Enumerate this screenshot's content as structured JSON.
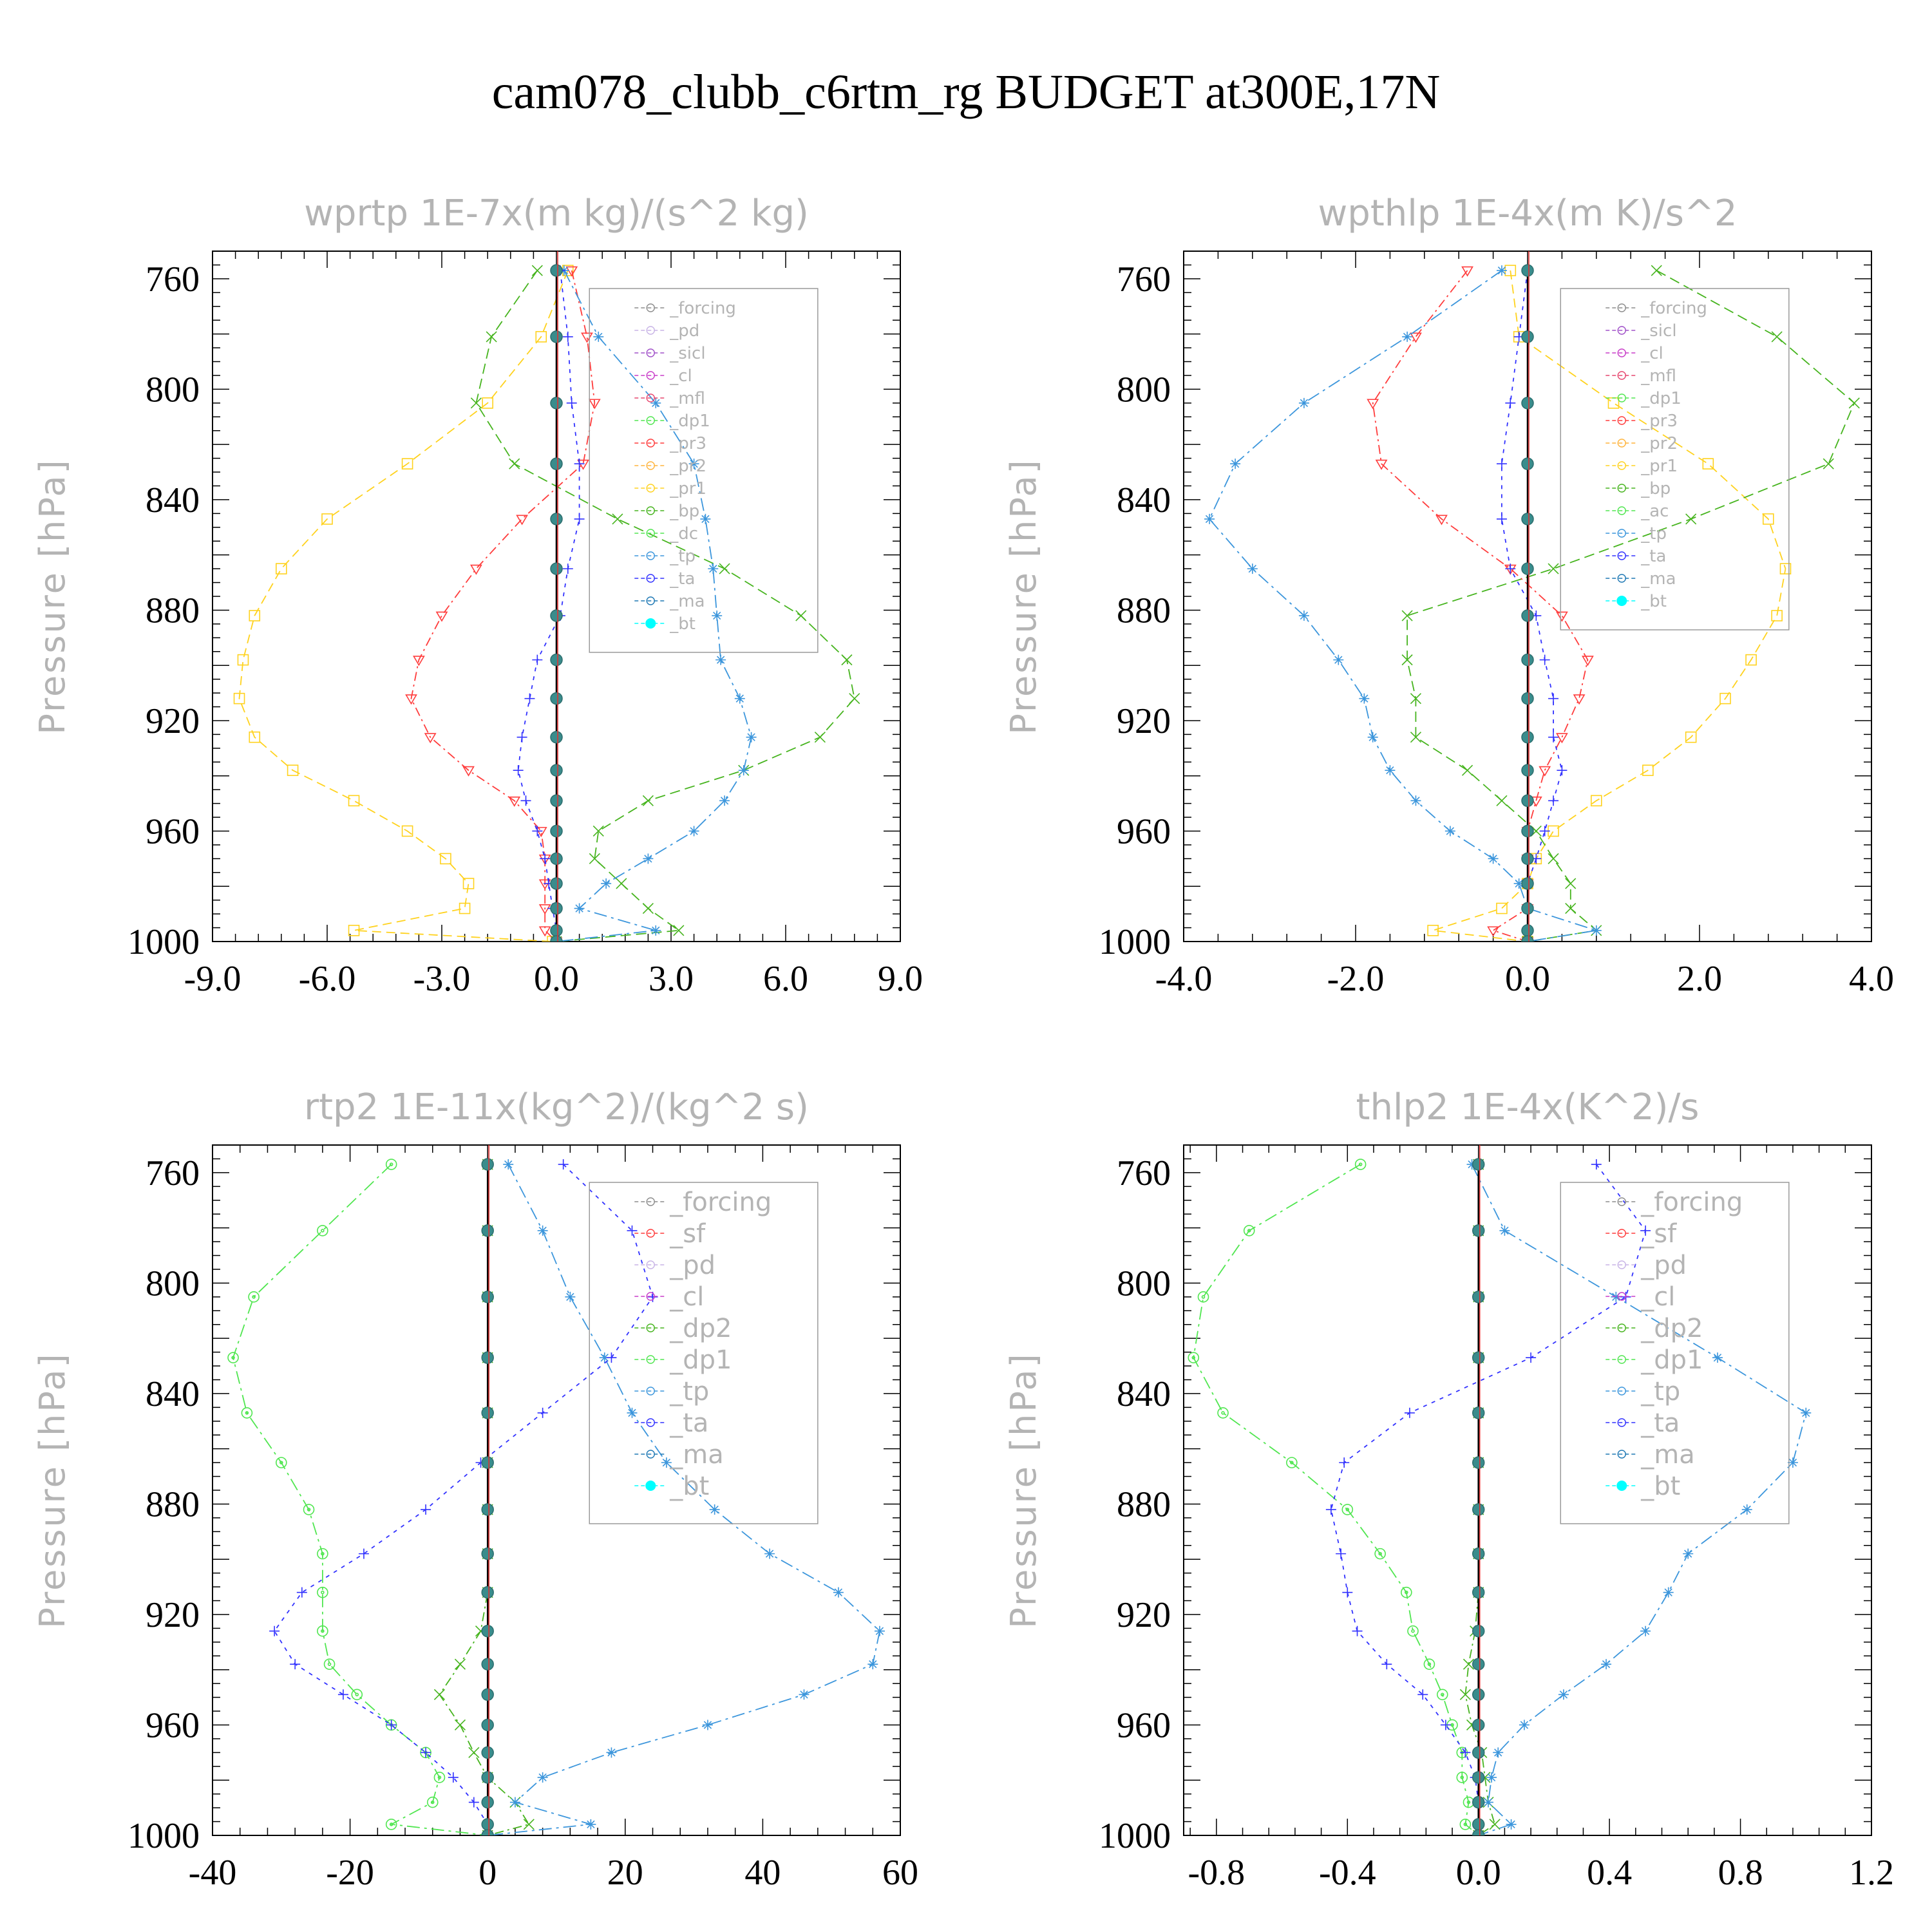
{
  "title": "cam078_clubb_c6rtm_rg  BUDGET at300E,17N",
  "chart_data": [
    {
      "type": "line",
      "title": "wprtp  1E-7x(m kg)/(s^2 kg)",
      "ylabel": "Pressure [hPa]",
      "xlim": [
        -9,
        9
      ],
      "ylim": [
        1000,
        750
      ],
      "xticks": [
        "-9.0",
        "-6.0",
        "-3.0",
        "0.0",
        "3.0",
        "6.0",
        "9.0"
      ],
      "yticks": [
        "760",
        "800",
        "840",
        "880",
        "920",
        "960",
        "1000"
      ],
      "pressure": [
        757,
        781,
        805,
        827,
        847,
        865,
        882,
        898,
        912,
        926,
        938,
        949,
        960,
        970,
        979,
        988,
        996,
        1000
      ],
      "legend": [
        "_forcing",
        "_pd",
        "_sicl",
        "_cl",
        "_mfl",
        "_dp1",
        "_pr3",
        "_pr2",
        "_pr1",
        "_bp",
        "_dc",
        "_tp",
        "_ta",
        "_ma",
        "_bt"
      ],
      "series": [
        {
          "name": "_pr1",
          "color": "#ffd21e",
          "values": [
            0.3,
            -0.4,
            -1.8,
            -3.9,
            -6.0,
            -7.2,
            -7.9,
            -8.2,
            -8.3,
            -7.9,
            -6.9,
            -5.3,
            -3.9,
            -2.9,
            -2.3,
            -2.4,
            -5.3,
            -0.1
          ]
        },
        {
          "name": "_pr3",
          "color": "#ff3c3c",
          "values": [
            0.4,
            0.8,
            1.0,
            0.7,
            -0.9,
            -2.1,
            -3.0,
            -3.6,
            -3.8,
            -3.3,
            -2.3,
            -1.1,
            -0.4,
            -0.3,
            -0.3,
            -0.3,
            -0.3,
            0
          ]
        },
        {
          "name": "_bp",
          "color": "#46b41e",
          "values": [
            -0.5,
            -1.7,
            -2.1,
            -1.1,
            1.6,
            4.4,
            6.4,
            7.6,
            7.8,
            6.9,
            4.9,
            2.4,
            1.1,
            1.0,
            1.7,
            2.4,
            3.2,
            0
          ]
        },
        {
          "name": "_tp",
          "color": "#3c96dc",
          "values": [
            0.2,
            1.1,
            2.6,
            3.6,
            3.9,
            4.1,
            4.2,
            4.3,
            4.8,
            5.1,
            4.9,
            4.4,
            3.6,
            2.4,
            1.3,
            0.6,
            2.6,
            0
          ]
        },
        {
          "name": "_ta",
          "color": "#3232ff",
          "values": [
            0.1,
            0.3,
            0.4,
            0.6,
            0.6,
            0.3,
            0.1,
            -0.5,
            -0.7,
            -0.9,
            -1.0,
            -0.8,
            -0.5,
            -0.3,
            -0.2,
            -0.1,
            0,
            0
          ]
        },
        {
          "name": "_bt",
          "color": "#00ffff",
          "values": [
            0,
            0,
            0,
            0,
            0,
            0,
            0,
            0,
            0,
            0,
            0,
            0,
            0,
            0,
            0,
            0,
            0,
            0
          ]
        }
      ]
    },
    {
      "type": "line",
      "title": "wpthlp  1E-4x(m K)/s^2",
      "ylabel": "Pressure [hPa]",
      "xlim": [
        -4,
        4
      ],
      "ylim": [
        1000,
        750
      ],
      "xticks": [
        "-4.0",
        "-2.0",
        "0.0",
        "2.0",
        "4.0"
      ],
      "yticks": [
        "760",
        "800",
        "840",
        "880",
        "920",
        "960",
        "1000"
      ],
      "pressure": [
        757,
        781,
        805,
        827,
        847,
        865,
        882,
        898,
        912,
        926,
        938,
        949,
        960,
        970,
        979,
        988,
        996,
        1000
      ],
      "legend": [
        "_forcing",
        "_sicl",
        "_cl",
        "_mfl",
        "_dp1",
        "_pr3",
        "_pr2",
        "_pr1",
        "_bp",
        "_ac",
        "_tp",
        "_ta",
        "_ma",
        "_bt"
      ],
      "series": [
        {
          "name": "_pr1",
          "color": "#ffd21e",
          "values": [
            -0.2,
            -0.1,
            1.0,
            2.1,
            2.8,
            3.0,
            2.9,
            2.6,
            2.3,
            1.9,
            1.4,
            0.8,
            0.3,
            0.1,
            0.0,
            -0.3,
            -1.1,
            0
          ]
        },
        {
          "name": "_pr3",
          "color": "#ff3c3c",
          "values": [
            -0.7,
            -1.3,
            -1.8,
            -1.7,
            -1.0,
            -0.2,
            0.4,
            0.7,
            0.6,
            0.4,
            0.2,
            0.1,
            0.0,
            0.0,
            0.0,
            0.0,
            -0.4,
            0
          ]
        },
        {
          "name": "_bp",
          "color": "#46b41e",
          "values": [
            1.5,
            2.9,
            3.8,
            3.5,
            1.9,
            0.3,
            -1.4,
            -1.4,
            -1.3,
            -1.3,
            -0.7,
            -0.3,
            0.1,
            0.3,
            0.5,
            0.5,
            0.8,
            0
          ]
        },
        {
          "name": "_tp",
          "color": "#3c96dc",
          "values": [
            -0.3,
            -1.4,
            -2.6,
            -3.4,
            -3.7,
            -3.2,
            -2.6,
            -2.2,
            -1.9,
            -1.8,
            -1.6,
            -1.3,
            -0.9,
            -0.4,
            -0.1,
            0.0,
            0.8,
            0
          ]
        },
        {
          "name": "_ta",
          "color": "#3232ff",
          "values": [
            0.0,
            -0.1,
            -0.2,
            -0.3,
            -0.3,
            -0.2,
            0.1,
            0.2,
            0.3,
            0.3,
            0.4,
            0.3,
            0.2,
            0.1,
            0.0,
            0.0,
            0.0,
            0
          ]
        },
        {
          "name": "_bt",
          "color": "#00ffff",
          "values": [
            0,
            0,
            0,
            0,
            0,
            0,
            0,
            0,
            0,
            0,
            0,
            0,
            0,
            0,
            0,
            0,
            0,
            0
          ]
        }
      ]
    },
    {
      "type": "line",
      "title": "rtp2  1E-11x(kg^2)/(kg^2 s)",
      "ylabel": "Pressure [hPa]",
      "xlim": [
        -40,
        60
      ],
      "ylim": [
        1000,
        750
      ],
      "xticks": [
        "-40",
        "-20",
        "0",
        "20",
        "40",
        "60"
      ],
      "yticks": [
        "760",
        "800",
        "840",
        "880",
        "920",
        "960",
        "1000"
      ],
      "pressure": [
        757,
        781,
        805,
        827,
        847,
        865,
        882,
        898,
        912,
        926,
        938,
        949,
        960,
        970,
        979,
        988,
        996,
        1000
      ],
      "legend": [
        "_forcing",
        "_sf",
        "_pd",
        "_cl",
        "_dp2",
        "_dp1",
        "_tp",
        "_ta",
        "_ma",
        "_bt"
      ],
      "series": [
        {
          "name": "_dp1",
          "color": "#50e650",
          "values": [
            -14,
            -24,
            -34,
            -37,
            -35,
            -30,
            -26,
            -24,
            -24,
            -24,
            -23,
            -19,
            -14,
            -9,
            -7,
            -8,
            -14,
            0
          ]
        },
        {
          "name": "_dp2",
          "color": "#46b41e",
          "values": [
            0,
            0,
            0,
            0,
            0,
            0,
            0,
            0,
            0,
            -1,
            -4,
            -7,
            -4,
            -2,
            0,
            4,
            6,
            0
          ]
        },
        {
          "name": "_tp",
          "color": "#3c96dc",
          "values": [
            3,
            8,
            12,
            17,
            21,
            26,
            33,
            41,
            51,
            57,
            56,
            46,
            32,
            18,
            8,
            4,
            15,
            0
          ]
        },
        {
          "name": "_ta",
          "color": "#3232ff",
          "values": [
            11,
            21,
            24,
            18,
            8,
            -1,
            -9,
            -18,
            -27,
            -31,
            -28,
            -21,
            -14,
            -9,
            -5,
            -2,
            0,
            0
          ]
        },
        {
          "name": "_bt",
          "color": "#00ffff",
          "values": [
            0,
            0,
            0,
            0,
            0,
            0,
            0,
            0,
            0,
            0,
            0,
            0,
            0,
            0,
            0,
            0,
            0,
            0
          ]
        }
      ]
    },
    {
      "type": "line",
      "title": "thlp2  1E-4x(K^2)/s",
      "ylabel": "Pressure [hPa]",
      "xlim": [
        -0.9,
        1.2
      ],
      "ylim": [
        1000,
        750
      ],
      "xticks": [
        "-0.8",
        "-0.4",
        "0.0",
        "0.4",
        "0.8",
        "1.2"
      ],
      "yticks": [
        "760",
        "800",
        "840",
        "880",
        "920",
        "960",
        "1000"
      ],
      "pressure": [
        757,
        781,
        805,
        827,
        847,
        865,
        882,
        898,
        912,
        926,
        938,
        949,
        960,
        970,
        979,
        988,
        996,
        1000
      ],
      "legend": [
        "_forcing",
        "_sf",
        "_pd",
        "_cl",
        "_dp2",
        "_dp1",
        "_tp",
        "_ta",
        "_ma",
        "_bt"
      ],
      "series": [
        {
          "name": "_dp1",
          "color": "#50e650",
          "values": [
            -0.36,
            -0.7,
            -0.84,
            -0.87,
            -0.78,
            -0.57,
            -0.4,
            -0.3,
            -0.22,
            -0.2,
            -0.15,
            -0.11,
            -0.08,
            -0.05,
            -0.05,
            -0.03,
            -0.04,
            0
          ]
        },
        {
          "name": "_dp2",
          "color": "#46b41e",
          "values": [
            0,
            0,
            0,
            0,
            0,
            0,
            0,
            0,
            0,
            -0.01,
            -0.03,
            -0.04,
            -0.02,
            0.01,
            0.02,
            0.03,
            0.05,
            0
          ]
        },
        {
          "name": "_tp",
          "color": "#3c96dc",
          "values": [
            -0.02,
            0.08,
            0.42,
            0.73,
            1.0,
            0.96,
            0.82,
            0.64,
            0.58,
            0.51,
            0.39,
            0.26,
            0.14,
            0.06,
            0.04,
            0.03,
            0.1,
            0
          ]
        },
        {
          "name": "_ta",
          "color": "#3232ff",
          "values": [
            0.36,
            0.51,
            0.45,
            0.16,
            -0.21,
            -0.41,
            -0.45,
            -0.42,
            -0.4,
            -0.37,
            -0.28,
            -0.17,
            -0.1,
            -0.04,
            -0.01,
            0.0,
            0.0,
            0
          ]
        },
        {
          "name": "_bt",
          "color": "#00ffff",
          "values": [
            0,
            0,
            0,
            0,
            0,
            0,
            0,
            0,
            0,
            0,
            0,
            0,
            0,
            0,
            0,
            0,
            0,
            0
          ]
        }
      ]
    }
  ]
}
